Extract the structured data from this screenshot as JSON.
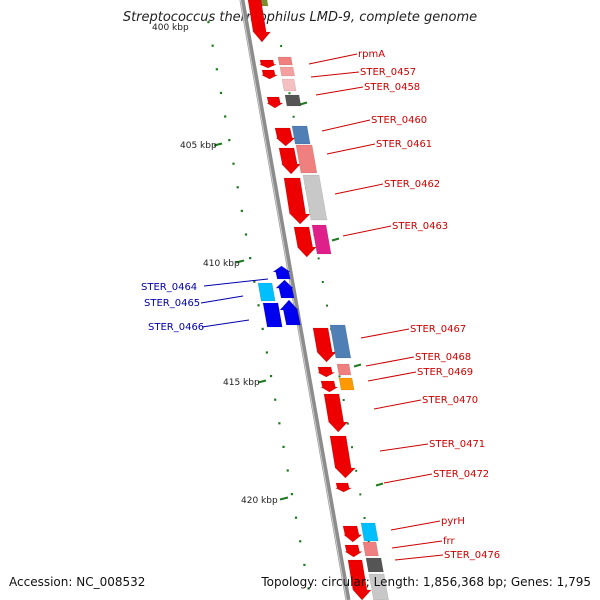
{
  "title": "Streptococcus thermophilus LMD-9, complete genome",
  "accession": "Accession: NC_008532",
  "summary": "Topology: circular; Length: 1,856,368 bp; Genes: 1,795",
  "colors": {
    "backbone": "#8c8c8c",
    "tick": "#1f7a1f",
    "forward_label": "#cc0000",
    "reverse_label": "#0000aa"
  },
  "scale_labels": [
    {
      "kbp": 400,
      "label": "400 kbp"
    },
    {
      "kbp": 405,
      "label": "405 kbp"
    },
    {
      "kbp": 410,
      "label": "410 kbp"
    },
    {
      "kbp": 415,
      "label": "415 kbp"
    },
    {
      "kbp": 420,
      "label": "420 kbp"
    }
  ],
  "genes": [
    {
      "label": "rpmA",
      "strand": "forward"
    },
    {
      "label": "STER_0457",
      "strand": "forward"
    },
    {
      "label": "STER_0458",
      "strand": "forward"
    },
    {
      "label": "STER_0460",
      "strand": "forward"
    },
    {
      "label": "STER_0461",
      "strand": "forward"
    },
    {
      "label": "STER_0462",
      "strand": "forward"
    },
    {
      "label": "STER_0463",
      "strand": "forward"
    },
    {
      "label": "STER_0464",
      "strand": "reverse"
    },
    {
      "label": "STER_0465",
      "strand": "reverse"
    },
    {
      "label": "STER_0466",
      "strand": "reverse"
    },
    {
      "label": "STER_0467",
      "strand": "forward"
    },
    {
      "label": "STER_0468",
      "strand": "forward"
    },
    {
      "label": "STER_0469",
      "strand": "forward"
    },
    {
      "label": "STER_0470",
      "strand": "forward"
    },
    {
      "label": "STER_0471",
      "strand": "forward"
    },
    {
      "label": "STER_0472",
      "strand": "forward"
    },
    {
      "label": "pyrH",
      "strand": "forward"
    },
    {
      "label": "frr",
      "strand": "forward"
    },
    {
      "label": "STER_0476",
      "strand": "forward"
    }
  ]
}
